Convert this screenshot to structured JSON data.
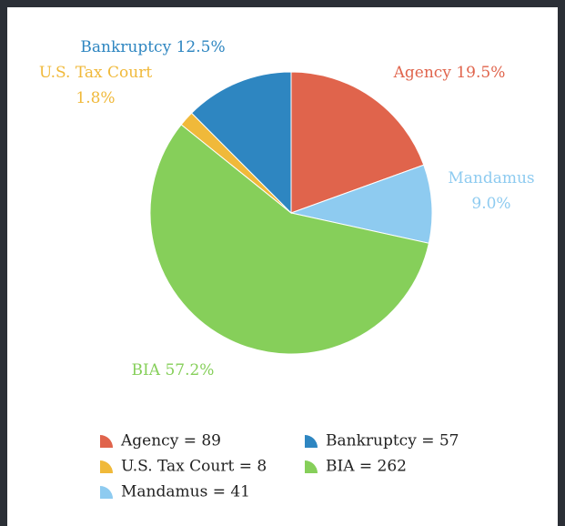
{
  "chart_data": {
    "type": "pie",
    "categories": [
      "Agency",
      "Mandamus",
      "BIA",
      "U.S. Tax Court",
      "Bankruptcy"
    ],
    "values": [
      89,
      41,
      262,
      8,
      57
    ],
    "percent_labels": [
      "19.5%",
      "9.0%",
      "57.2%",
      "1.8%",
      "12.5%"
    ],
    "legend_labels": [
      "Agency = 89",
      "Mandamus = 41",
      "BIA = 262",
      "U.S. Tax Court = 8",
      "Bankruptcy = 57"
    ],
    "colors": [
      "#e0644c",
      "#8ecbf0",
      "#86cf5a",
      "#f0b93a",
      "#2e86c1"
    ]
  }
}
